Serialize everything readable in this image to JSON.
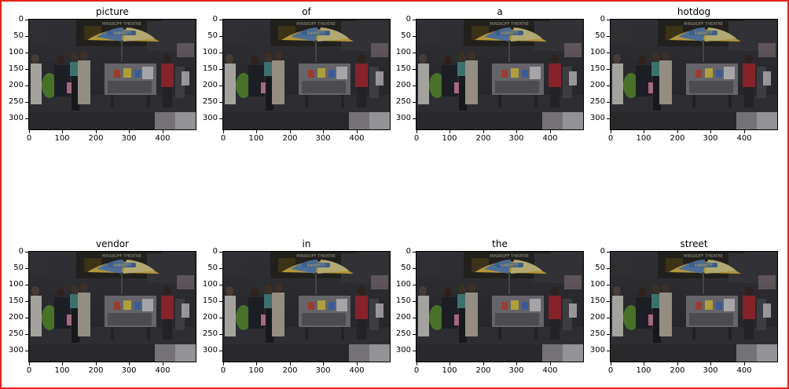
{
  "panels": [
    {
      "title": "picture"
    },
    {
      "title": "of"
    },
    {
      "title": "a"
    },
    {
      "title": "hotdog"
    },
    {
      "title": "vendor"
    },
    {
      "title": "in"
    },
    {
      "title": "the"
    },
    {
      "title": "street"
    }
  ],
  "axes": {
    "y_ticks": [
      "0",
      "50",
      "100",
      "150",
      "200",
      "250",
      "300"
    ],
    "x_ticks": [
      "0",
      "100",
      "200",
      "300",
      "400"
    ],
    "image_width": 500,
    "image_height": 333
  },
  "image": {
    "umbrella_text": "SABRETT",
    "building_sign": "MINSKOFF THEATRE"
  },
  "colors": {
    "border": "#e2231a"
  }
}
